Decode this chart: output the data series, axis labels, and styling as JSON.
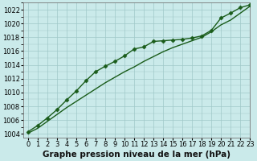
{
  "xlabel": "Graphe pression niveau de la mer (hPa)",
  "xlim": [
    -0.5,
    23
  ],
  "ylim": [
    1003.5,
    1023.0
  ],
  "yticks": [
    1004,
    1006,
    1008,
    1010,
    1012,
    1014,
    1016,
    1018,
    1020,
    1022
  ],
  "xticks": [
    0,
    1,
    2,
    3,
    4,
    5,
    6,
    7,
    8,
    9,
    10,
    11,
    12,
    13,
    14,
    15,
    16,
    17,
    18,
    19,
    20,
    21,
    22,
    23
  ],
  "bg_color": "#caeaea",
  "grid_color": "#a0c8c8",
  "line_color_1": "#1a5c1a",
  "line_color_2": "#1a5c1a",
  "series1_x": [
    0,
    1,
    2,
    3,
    4,
    5,
    6,
    7,
    8,
    9,
    10,
    11,
    12,
    13,
    14,
    15,
    16,
    17,
    18,
    19,
    20,
    21,
    22,
    23
  ],
  "series1_y": [
    1004.3,
    1005.2,
    1006.3,
    1007.5,
    1008.9,
    1010.2,
    1011.7,
    1013.0,
    1013.8,
    1014.5,
    1015.3,
    1016.3,
    1016.6,
    1017.4,
    1017.5,
    1017.6,
    1017.7,
    1017.9,
    1018.2,
    1019.0,
    1020.8,
    1021.5,
    1022.3,
    1022.7
  ],
  "series2_x": [
    0,
    1,
    2,
    3,
    4,
    5,
    6,
    7,
    8,
    9,
    10,
    11,
    12,
    13,
    14,
    15,
    16,
    17,
    18,
    19,
    20,
    21,
    22,
    23
  ],
  "series2_y": [
    1004.1,
    1004.8,
    1005.8,
    1006.8,
    1007.8,
    1008.7,
    1009.6,
    1010.5,
    1011.4,
    1012.2,
    1013.0,
    1013.7,
    1014.5,
    1015.2,
    1015.9,
    1016.5,
    1017.0,
    1017.5,
    1018.0,
    1018.8,
    1019.8,
    1020.5,
    1021.5,
    1022.5
  ],
  "marker": "D",
  "markersize": 2.5,
  "linewidth": 1.0,
  "xlabel_fontsize": 7.5,
  "tick_fontsize": 6.0
}
